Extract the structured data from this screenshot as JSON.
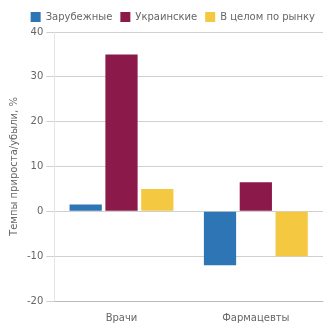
{
  "chart_data": {
    "type": "bar",
    "categories": [
      "Врачи",
      "Фармацевты"
    ],
    "series": [
      {
        "name": "Зарубежные",
        "color": "#2E75B6",
        "values": [
          1.5,
          -12.0
        ]
      },
      {
        "name": "Украинские",
        "color": "#8B1A4A",
        "values": [
          35.0,
          6.5
        ]
      },
      {
        "name": "В целом по рынку",
        "color": "#F5C842",
        "values": [
          5.0,
          -10.0
        ]
      }
    ],
    "ylabel": "Темпы прироста/убыли, %",
    "ylim": [
      -20,
      40
    ],
    "yticks": [
      -20,
      -10,
      0,
      10,
      20,
      30,
      40
    ],
    "grid": true,
    "legend": "upper right"
  }
}
